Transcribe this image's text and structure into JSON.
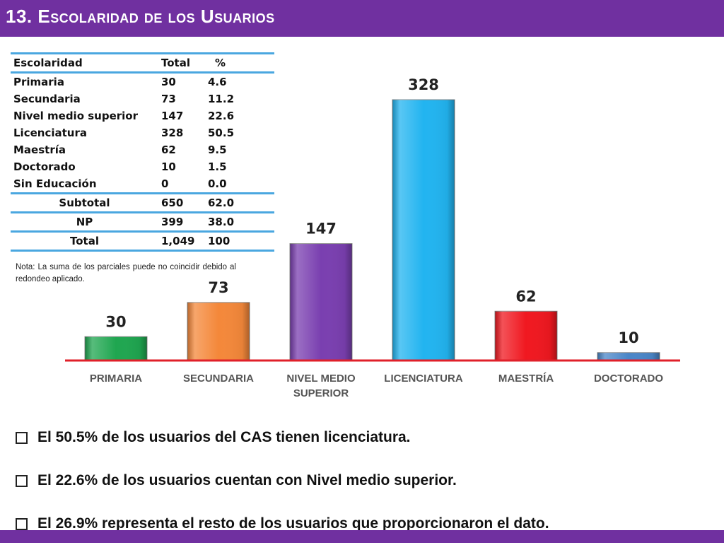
{
  "header": {
    "title": "13. Escolaridad de los Usuarios"
  },
  "colors": {
    "header_bg": "#7030a0",
    "table_rule": "#4aa7e0",
    "baseline": "#e0202a",
    "bar_primaria": "#1fa650",
    "bar_secundaria": "#f4883a",
    "bar_nivel_medio": "#7a3fb0",
    "bar_licenciatura": "#22b4f0",
    "bar_maestria": "#f01820",
    "bar_doctorado": "#4a86c8"
  },
  "table": {
    "headers": [
      "Escolaridad",
      "Total",
      "%"
    ],
    "rows": [
      {
        "label": "Primaria",
        "total": "30",
        "pct": "4.6"
      },
      {
        "label": "Secundaria",
        "total": "73",
        "pct": "11.2"
      },
      {
        "label": "Nivel medio superior",
        "total": "147",
        "pct": "22.6"
      },
      {
        "label": "Licenciatura",
        "total": "328",
        "pct": "50.5"
      },
      {
        "label": "Maestría",
        "total": "62",
        "pct": "9.5"
      },
      {
        "label": "Doctorado",
        "total": "10",
        "pct": "1.5"
      },
      {
        "label": "Sin Educación",
        "total": "0",
        "pct": "0.0"
      }
    ],
    "summary": [
      {
        "label": "Subtotal",
        "total": "650",
        "pct": "62.0"
      },
      {
        "label": "NP",
        "total": "399",
        "pct": "38.0"
      },
      {
        "label": "Total",
        "total": "1,049",
        "pct": "100"
      }
    ]
  },
  "note": "Nota: La suma de los parciales puede no coincidir debido al redondeo aplicado.",
  "chart_data": {
    "type": "bar",
    "categories": [
      "PRIMARIA",
      "SECUNDARIA",
      "NIVEL MEDIO SUPERIOR",
      "LICENCIATURA",
      "MAESTRÍA",
      "DOCTORADO"
    ],
    "values": [
      30,
      73,
      147,
      328,
      62,
      10
    ],
    "data_labels": [
      "30",
      "73",
      "147",
      "328",
      "62",
      "10"
    ],
    "title": "",
    "xlabel": "",
    "ylabel": "",
    "ylim": [
      0,
      328
    ],
    "grid": false,
    "legend": "none"
  },
  "bullets": [
    "El 50.5% de los usuarios del CAS tienen licenciatura.",
    "El 22.6% de los usuarios cuentan con Nivel medio superior.",
    "El  26.9% representa el resto de los usuarios que proporcionaron el dato."
  ]
}
